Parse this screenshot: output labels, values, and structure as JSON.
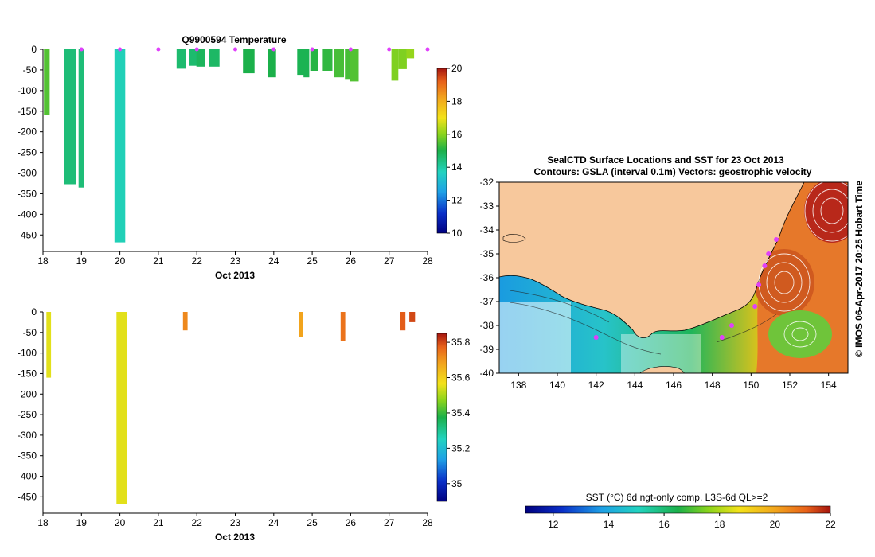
{
  "chart_data": [
    {
      "type": "bar",
      "title": "Q9900594  Temperature",
      "xlabel": "Oct 2013",
      "ylabel": "",
      "x_ticks": [
        "18",
        "19",
        "20",
        "21",
        "22",
        "23",
        "24",
        "25",
        "26",
        "27",
        "28"
      ],
      "y_ticks": [
        "0",
        "-50",
        "-100",
        "-150",
        "-200",
        "-250",
        "-300",
        "-350",
        "-400",
        "-450"
      ],
      "xlim": [
        18,
        28
      ],
      "ylim": [
        -490,
        0
      ],
      "colorbar": {
        "ticks": [
          "20",
          "18",
          "16",
          "14",
          "12",
          "10"
        ],
        "range": [
          10,
          20
        ]
      },
      "profiles": [
        {
          "day": 18.1,
          "width": 0.15,
          "depth": -160,
          "value": 15.5
        },
        {
          "day": 18.7,
          "width": 0.3,
          "depth": -327,
          "value": 14.5
        },
        {
          "day": 19.0,
          "width": 0.15,
          "depth": -335,
          "value": 14.5
        },
        {
          "day": 20.0,
          "width": 0.28,
          "depth": -468,
          "value": 13.8
        },
        {
          "day": 21.6,
          "width": 0.25,
          "depth": -47,
          "value": 14.6
        },
        {
          "day": 21.9,
          "width": 0.2,
          "depth": -40,
          "value": 14.6
        },
        {
          "day": 22.1,
          "width": 0.22,
          "depth": -42,
          "value": 14.8
        },
        {
          "day": 22.45,
          "width": 0.28,
          "depth": -42,
          "value": 14.7
        },
        {
          "day": 23.35,
          "width": 0.3,
          "depth": -58,
          "value": 15.0
        },
        {
          "day": 23.95,
          "width": 0.22,
          "depth": -68,
          "value": 15.0
        },
        {
          "day": 24.7,
          "width": 0.18,
          "depth": -62,
          "value": 14.9
        },
        {
          "day": 24.85,
          "width": 0.15,
          "depth": -68,
          "value": 14.9
        },
        {
          "day": 25.05,
          "width": 0.2,
          "depth": -52,
          "value": 15.1
        },
        {
          "day": 25.4,
          "width": 0.25,
          "depth": -52,
          "value": 15.2
        },
        {
          "day": 25.7,
          "width": 0.25,
          "depth": -68,
          "value": 15.4
        },
        {
          "day": 25.95,
          "width": 0.2,
          "depth": -72,
          "value": 15.4
        },
        {
          "day": 26.1,
          "width": 0.22,
          "depth": -78,
          "value": 15.5
        },
        {
          "day": 27.15,
          "width": 0.18,
          "depth": -76,
          "value": 15.9
        },
        {
          "day": 27.35,
          "width": 0.22,
          "depth": -48,
          "value": 15.9
        },
        {
          "day": 27.55,
          "width": 0.2,
          "depth": -22,
          "value": 16.1
        }
      ],
      "surface_markers": [
        19.0,
        20.0,
        21.0,
        22.0,
        23.0,
        24.0,
        25.0,
        26.0,
        27.0,
        28.0
      ]
    },
    {
      "type": "bar",
      "title": "",
      "xlabel": "Oct 2013",
      "ylabel": "",
      "x_ticks": [
        "18",
        "19",
        "20",
        "21",
        "22",
        "23",
        "24",
        "25",
        "26",
        "27",
        "28"
      ],
      "y_ticks": [
        "0",
        "-50",
        "-100",
        "-150",
        "-200",
        "-250",
        "-300",
        "-350",
        "-400",
        "-450"
      ],
      "xlim": [
        18,
        28
      ],
      "ylim": [
        -490,
        0
      ],
      "colorbar": {
        "ticks": [
          "35.8",
          "35.6",
          "35.4",
          "35.2",
          "35"
        ],
        "range": [
          34.9,
          35.85
        ]
      },
      "profiles": [
        {
          "day": 18.15,
          "width": 0.12,
          "depth": -160,
          "value": 35.55
        },
        {
          "day": 20.05,
          "width": 0.28,
          "depth": -468,
          "value": 35.55
        },
        {
          "day": 21.7,
          "width": 0.12,
          "depth": -45,
          "value": 35.72
        },
        {
          "day": 24.7,
          "width": 0.1,
          "depth": -60,
          "value": 35.68
        },
        {
          "day": 25.8,
          "width": 0.12,
          "depth": -70,
          "value": 35.75
        },
        {
          "day": 27.35,
          "width": 0.15,
          "depth": -45,
          "value": 35.78
        },
        {
          "day": 27.6,
          "width": 0.15,
          "depth": -25,
          "value": 35.8
        }
      ]
    },
    {
      "type": "heatmap",
      "title": "SealCTD Surface Locations and SST for 23 Oct 2013",
      "subtitle": "Contours: GSLA (interval 0.1m) Vectors: geostrophic velocity",
      "x_ticks": [
        "138",
        "140",
        "142",
        "144",
        "146",
        "148",
        "150",
        "152",
        "154"
      ],
      "y_ticks": [
        "-32",
        "-33",
        "-34",
        "-35",
        "-36",
        "-37",
        "-38",
        "-39",
        "-40"
      ],
      "xlim": [
        137,
        155
      ],
      "ylim": [
        -40,
        -32
      ],
      "side_text": "©  IMOS 06-Apr-2017 20:25 Hobart Time",
      "colorbar": {
        "label": "SST (°C) 6d ngt-only comp, L3S-6d QL>=2",
        "ticks": [
          "12",
          "14",
          "16",
          "18",
          "20",
          "22"
        ],
        "range": [
          11,
          22
        ]
      },
      "locations": [
        {
          "lon": 142.0,
          "lat": -38.5
        },
        {
          "lon": 148.5,
          "lat": -38.5
        },
        {
          "lon": 149.0,
          "lat": -38.0
        },
        {
          "lon": 150.2,
          "lat": -37.2
        },
        {
          "lon": 150.4,
          "lat": -36.3
        },
        {
          "lon": 150.7,
          "lat": -35.5
        },
        {
          "lon": 150.9,
          "lat": -35.0
        },
        {
          "lon": 151.3,
          "lat": -34.4
        }
      ]
    }
  ]
}
